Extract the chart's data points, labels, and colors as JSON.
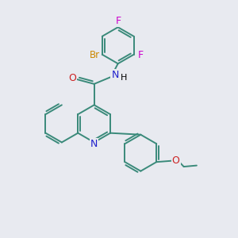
{
  "bg_color": "#e8eaf0",
  "bond_color": "#3a8a7a",
  "N_color": "#2020cc",
  "O_color": "#cc2020",
  "F_color": "#cc00cc",
  "Br_color": "#cc8800",
  "bond_width": 1.4,
  "figsize": [
    3.0,
    3.0
  ],
  "dpi": 100,
  "xlim": [
    0,
    10
  ],
  "ylim": [
    0,
    10
  ]
}
